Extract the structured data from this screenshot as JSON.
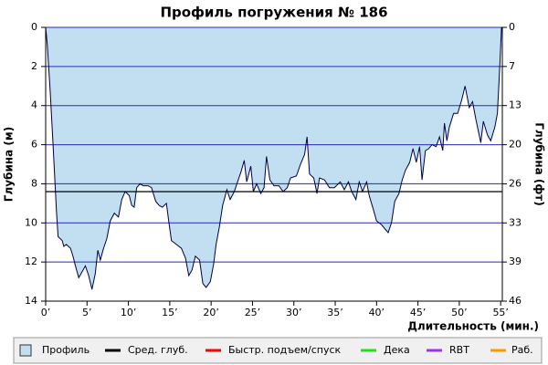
{
  "chart_data": {
    "type": "area",
    "title": "Профиль погружения № 186",
    "x_label": "Длительность (мин.)",
    "y_label": "Глубина (м)",
    "y2_label": "Глубина (фт)",
    "x": [
      0,
      0.2,
      0.55,
      0.9,
      1.3,
      1.5,
      2.0,
      2.2,
      2.5,
      3.0,
      3.3,
      3.6,
      4.0,
      4.4,
      4.8,
      5.2,
      5.6,
      6.0,
      6.3,
      6.6,
      7.0,
      7.4,
      7.8,
      8.3,
      8.8,
      9.2,
      9.6,
      10.1,
      10.4,
      10.7,
      11.0,
      11.4,
      11.8,
      12.4,
      12.8,
      13.3,
      13.7,
      14.1,
      14.6,
      14.9,
      15.2,
      15.8,
      16.4,
      16.9,
      17.3,
      17.7,
      18.1,
      18.6,
      19.0,
      19.4,
      19.9,
      20.3,
      20.6,
      21.0,
      21.4,
      21.9,
      22.3,
      22.8,
      23.2,
      23.6,
      24.0,
      24.3,
      24.8,
      25.1,
      25.5,
      26.0,
      26.4,
      26.7,
      27.1,
      27.6,
      28.2,
      28.7,
      29.2,
      29.6,
      30.3,
      30.8,
      31.3,
      31.6,
      31.9,
      32.4,
      32.8,
      33.1,
      33.7,
      34.3,
      34.9,
      35.6,
      36.1,
      36.6,
      37.0,
      37.5,
      37.9,
      38.3,
      38.8,
      39.1,
      39.6,
      40.0,
      40.6,
      41.0,
      41.4,
      41.8,
      42.2,
      42.7,
      43.1,
      43.5,
      44.0,
      44.4,
      44.8,
      45.2,
      45.5,
      45.9,
      46.3,
      46.7,
      47.2,
      47.6,
      48.0,
      48.2,
      48.5,
      48.8,
      49.3,
      49.8,
      50.3,
      50.7,
      51.2,
      51.6,
      52.0,
      52.6,
      52.9,
      53.4,
      53.8,
      54.3,
      54.6,
      54.9,
      55.1
    ],
    "series": [
      {
        "name": "Профиль",
        "color": "#c1dff1",
        "line_color": "#000040",
        "values": [
          0,
          0.9,
          3.3,
          6.1,
          9.4,
          10.7,
          10.9,
          11.2,
          11.1,
          11.3,
          11.7,
          12.2,
          12.8,
          12.5,
          12.2,
          12.7,
          13.4,
          12.6,
          11.4,
          11.9,
          11.3,
          10.8,
          9.9,
          9.5,
          9.7,
          8.8,
          8.4,
          8.6,
          9.1,
          9.2,
          8.2,
          8.0,
          8.1,
          8.1,
          8.2,
          8.9,
          9.1,
          9.2,
          9.0,
          10.0,
          10.9,
          11.1,
          11.3,
          11.8,
          12.7,
          12.4,
          11.7,
          11.9,
          13.1,
          13.3,
          13.0,
          12.1,
          11.1,
          10.2,
          9.1,
          8.3,
          8.8,
          8.4,
          7.9,
          7.4,
          6.8,
          7.9,
          7.1,
          8.4,
          8.0,
          8.5,
          8.2,
          6.6,
          7.8,
          8.1,
          8.1,
          8.4,
          8.2,
          7.7,
          7.6,
          7.0,
          6.5,
          5.6,
          7.5,
          7.7,
          8.5,
          7.7,
          7.8,
          8.2,
          8.2,
          7.9,
          8.3,
          7.9,
          8.4,
          8.8,
          7.9,
          8.4,
          7.9,
          8.6,
          9.3,
          9.9,
          10.1,
          10.3,
          10.5,
          10.0,
          8.9,
          8.5,
          7.8,
          7.3,
          6.9,
          6.2,
          6.9,
          6.1,
          7.8,
          6.3,
          6.2,
          6.0,
          6.1,
          5.6,
          6.3,
          4.9,
          5.8,
          5.1,
          4.4,
          4.4,
          3.7,
          3.0,
          4.1,
          3.8,
          4.7,
          5.9,
          4.8,
          5.5,
          5.8,
          5.1,
          4.4,
          1.9,
          0
        ]
      }
    ],
    "reference_lines": [
      {
        "name": "Сред. глуб.",
        "color": "#000000",
        "value": 8.4
      }
    ],
    "legend_only": [
      {
        "name": "Быстр. подъем/спуск",
        "color": "#ff0000"
      },
      {
        "name": "Дека",
        "color": "#22dd22"
      },
      {
        "name": "RBT",
        "color": "#9933ee"
      },
      {
        "name": "Раб.",
        "color": "#ff9900"
      }
    ],
    "xlim": [
      0,
      55.2
    ],
    "xticks": [
      {
        "value": 0,
        "label": "0’"
      },
      {
        "value": 5,
        "label": "5’"
      },
      {
        "value": 10,
        "label": "10’"
      },
      {
        "value": 15,
        "label": "15’"
      },
      {
        "value": 20,
        "label": "20’"
      },
      {
        "value": 25,
        "label": "25’"
      },
      {
        "value": 30,
        "label": "30’"
      },
      {
        "value": 35,
        "label": "35’"
      },
      {
        "value": 40,
        "label": "40’"
      },
      {
        "value": 45,
        "label": "45’"
      },
      {
        "value": 50,
        "label": "50’"
      },
      {
        "value": 55,
        "label": "55’"
      }
    ],
    "ylim": [
      14,
      0
    ],
    "yticks": [
      0,
      2,
      4,
      6,
      8,
      10,
      12,
      14
    ],
    "y2lim": [
      45.93,
      0
    ],
    "y2ticks": [
      0,
      {
        "value": 6.56,
        "label": "7"
      },
      {
        "value": 13.12,
        "label": "13"
      },
      {
        "value": 19.69,
        "label": "20"
      },
      {
        "value": 26.25,
        "label": "26"
      },
      {
        "value": 32.81,
        "label": "33"
      },
      {
        "value": 39.37,
        "label": "39"
      },
      {
        "value": 45.93,
        "label": "46"
      }
    ],
    "grid": true,
    "grid_color": "#2a2ab8"
  }
}
